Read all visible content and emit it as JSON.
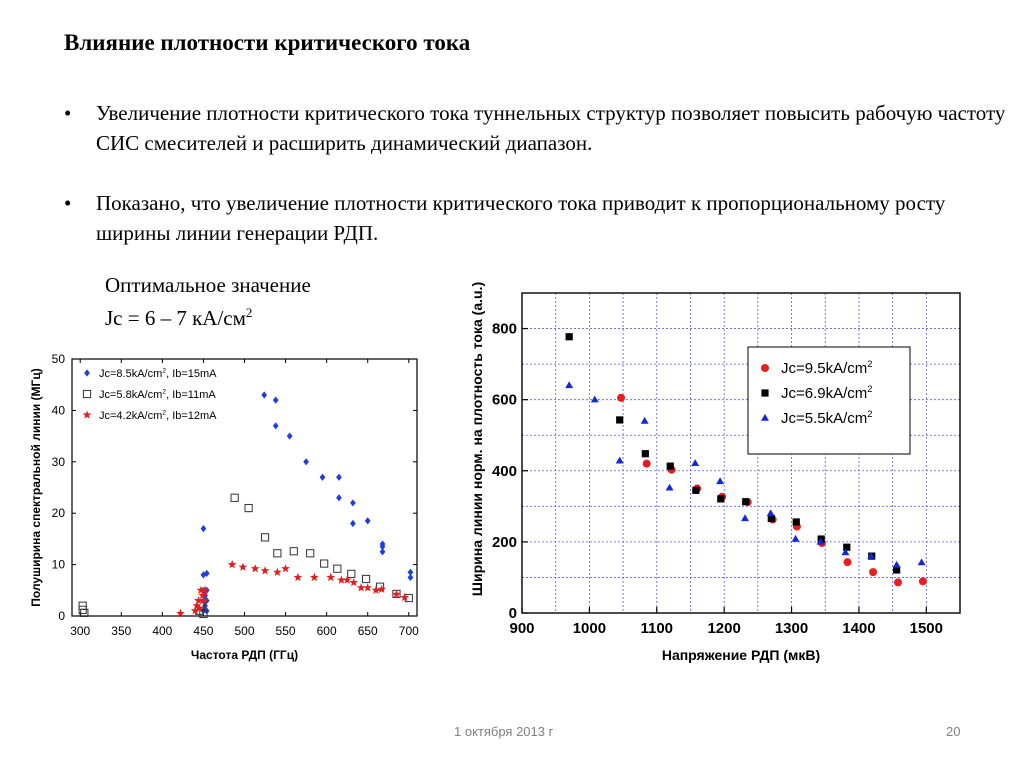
{
  "slide": {
    "title": "Влияние плотности критического тока",
    "bullets": [
      "Увеличение плотности критического тока туннельных структур позволяет повысить рабочую частоту СИС смесителей и расширить динамический диапазон.",
      "Показано, что увеличение плотности критического тока приводит к пропорциональному росту  ширины линии генерации РДП."
    ],
    "bullet_glyph": "•",
    "optimal_line1": "Оптимальное значение",
    "optimal_prefix": "Jc = 6 – 7 кА/см",
    "optimal_sup": "2",
    "footer_date": "1 октября 2013 г",
    "page_number": "20"
  },
  "chart_data": [
    {
      "type": "scatter",
      "xlabel": "Частота РДП (ГГц)",
      "ylabel": "Полуширина спектральной линии (МГц)",
      "xlim": [
        290,
        710
      ],
      "ylim": [
        0,
        50
      ],
      "xticks": [
        300,
        350,
        400,
        450,
        500,
        550,
        600,
        650,
        700
      ],
      "yticks": [
        0,
        10,
        20,
        30,
        40,
        50
      ],
      "grid": false,
      "legend": "top-left",
      "series": [
        {
          "name": "Jc=8.5kA/cm2, Ib=15mA",
          "label_main": "Jc=8.5kA/cm",
          "label_sup": "2",
          "label_tail": ", Ib=15mA",
          "marker": "diamond",
          "color": "#1f3fd6",
          "points": [
            [
              450,
              17
            ],
            [
              450,
              8
            ],
            [
              450,
              5
            ],
            [
              450,
              3
            ],
            [
              450,
              1
            ],
            [
              452,
              2
            ],
            [
              452,
              4
            ],
            [
              454,
              8.3
            ],
            [
              454,
              5
            ],
            [
              454,
              3
            ],
            [
              454,
              1
            ],
            [
              524,
              43
            ],
            [
              538,
              42
            ],
            [
              538,
              37
            ],
            [
              555,
              35
            ],
            [
              575,
              30
            ],
            [
              595,
              27
            ],
            [
              615,
              27
            ],
            [
              615,
              23
            ],
            [
              632,
              22
            ],
            [
              632,
              18
            ],
            [
              650,
              18.5
            ],
            [
              668,
              14
            ],
            [
              668,
              12.5
            ],
            [
              668,
              13.5
            ],
            [
              702,
              8.5
            ],
            [
              702,
              7.5
            ]
          ]
        },
        {
          "name": "Jc=5.8kA/cm2, Ib=11mA",
          "label_main": "Jc=5.8kA/cm",
          "label_sup": "2",
          "label_tail": ", Ib=11mA",
          "marker": "open-square",
          "color": "#333333",
          "points": [
            [
              303,
              2
            ],
            [
              303,
              1.2
            ],
            [
              305,
              0.6
            ],
            [
              445,
              1
            ],
            [
              447,
              2
            ],
            [
              450,
              0.4
            ],
            [
              488,
              23
            ],
            [
              505,
              21
            ],
            [
              525,
              15.3
            ],
            [
              540,
              12.2
            ],
            [
              560,
              12.6
            ],
            [
              580,
              12.2
            ],
            [
              597,
              10.2
            ],
            [
              613,
              9.2
            ],
            [
              630,
              8.2
            ],
            [
              648,
              7.2
            ],
            [
              665,
              5.7
            ],
            [
              685,
              4.3
            ],
            [
              700,
              3.5
            ]
          ]
        },
        {
          "name": "Jc=4.2kA/cm2, Ib=12mA",
          "label_main": "Jc=4.2kA/cm",
          "label_sup": "2",
          "label_tail": ", Ib=12mA",
          "marker": "star",
          "color": "#e02020",
          "points": [
            [
              422,
              0.5
            ],
            [
              440,
              1
            ],
            [
              442,
              2
            ],
            [
              444,
              3
            ],
            [
              445,
              1.5
            ],
            [
              447,
              5
            ],
            [
              449,
              4
            ],
            [
              451,
              3
            ],
            [
              452,
              5
            ],
            [
              485,
              10
            ],
            [
              498,
              9.5
            ],
            [
              513,
              9.2
            ],
            [
              525,
              8.8
            ],
            [
              540,
              8.5
            ],
            [
              550,
              9.2
            ],
            [
              565,
              7.5
            ],
            [
              585,
              7.5
            ],
            [
              605,
              7.5
            ],
            [
              618,
              7
            ],
            [
              625,
              7
            ],
            [
              633,
              6.5
            ],
            [
              642,
              5.5
            ],
            [
              650,
              5.5
            ],
            [
              660,
              5
            ],
            [
              667,
              5.2
            ],
            [
              685,
              4.2
            ],
            [
              695,
              3.6
            ]
          ]
        }
      ]
    },
    {
      "type": "scatter",
      "xlabel": "Напряжение РДП (мкВ)",
      "ylabel": "Ширина линии норм. на плотность тока (a.u.)",
      "xlim": [
        900,
        1550
      ],
      "ylim": [
        0,
        900
      ],
      "xticks": [
        900,
        1000,
        1100,
        1200,
        1300,
        1400,
        1500
      ],
      "yticks": [
        0,
        200,
        400,
        600,
        800
      ],
      "grid": true,
      "legend": "top-right",
      "series": [
        {
          "name": "Jc=9.5kA/cm2",
          "label_main": "Jc=9.5kA/cm",
          "label_sup": "2",
          "marker": "circle",
          "color": "#e81e1e",
          "points": [
            [
              1047,
              605
            ],
            [
              1085,
              420
            ],
            [
              1122,
              403
            ],
            [
              1160,
              350
            ],
            [
              1197,
              327
            ],
            [
              1235,
              312
            ],
            [
              1272,
              263
            ],
            [
              1308,
              243
            ],
            [
              1345,
              197
            ],
            [
              1383,
              143
            ],
            [
              1421,
              115
            ],
            [
              1458,
              86
            ],
            [
              1495,
              89
            ]
          ]
        },
        {
          "name": "Jc=6.9kA/cm2",
          "label_main": "Jc=6.9kA/cm",
          "label_sup": "2",
          "marker": "square",
          "color": "#000000",
          "points": [
            [
              970,
              777
            ],
            [
              1045,
              543
            ],
            [
              1083,
              448
            ],
            [
              1120,
              413
            ],
            [
              1158,
              345
            ],
            [
              1195,
              321
            ],
            [
              1232,
              313
            ],
            [
              1270,
              266
            ],
            [
              1307,
              256
            ],
            [
              1344,
              208
            ],
            [
              1382,
              185
            ],
            [
              1419,
              160
            ],
            [
              1456,
              121
            ]
          ]
        },
        {
          "name": "Jc=5.5kA/cm2",
          "label_main": "Jc=5.5kA/cm",
          "label_sup": "2",
          "marker": "triangle",
          "color": "#1428d8",
          "points": [
            [
              970,
              640
            ],
            [
              1008,
              600
            ],
            [
              1045,
              428
            ],
            [
              1082,
              540
            ],
            [
              1119,
              352
            ],
            [
              1157,
              421
            ],
            [
              1194,
              370
            ],
            [
              1231,
              266
            ],
            [
              1269,
              280
            ],
            [
              1306,
              208
            ],
            [
              1343,
              200
            ],
            [
              1380,
              170
            ],
            [
              1418,
              160
            ],
            [
              1456,
              135
            ],
            [
              1493,
              142
            ]
          ]
        }
      ]
    }
  ]
}
